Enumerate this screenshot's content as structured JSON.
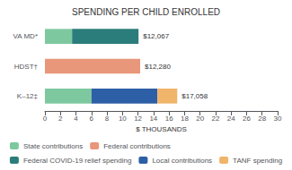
{
  "chart_data": {
    "type": "bar",
    "orientation": "horizontal",
    "stacked": true,
    "title": "SPENDING PER CHILD ENROLLED",
    "xlabel": "$ THOUSANDS",
    "categories": [
      "K–12‡",
      "HDST†",
      "VA MD*"
    ],
    "series": [
      {
        "name": "State contributions",
        "color": "#7ec8a0",
        "values": [
          6.0,
          0.0,
          3.5
        ]
      },
      {
        "name": "Federal contributions",
        "color": "#e8977a",
        "values": [
          0.0,
          12.28,
          0.0
        ]
      },
      {
        "name": "Federal COVID-19 relief spending",
        "color": "#2a7d7b",
        "values": [
          0.0,
          0.0,
          8.567
        ]
      },
      {
        "name": "Local contributions",
        "color": "#2d5fa6",
        "values": [
          8.5,
          0.0,
          0.0
        ]
      },
      {
        "name": "TANF spending",
        "color": "#f0b46a",
        "values": [
          2.558,
          0.0,
          0.0
        ]
      }
    ],
    "annotations": [
      "$17,058",
      "$12,280",
      "$12,067"
    ],
    "xlim": [
      0,
      30
    ],
    "xticks": [
      0,
      2,
      4,
      6,
      8,
      10,
      12,
      14,
      16,
      18,
      20,
      22,
      24,
      26,
      28,
      30
    ],
    "grid": false,
    "legend": "bottom"
  }
}
